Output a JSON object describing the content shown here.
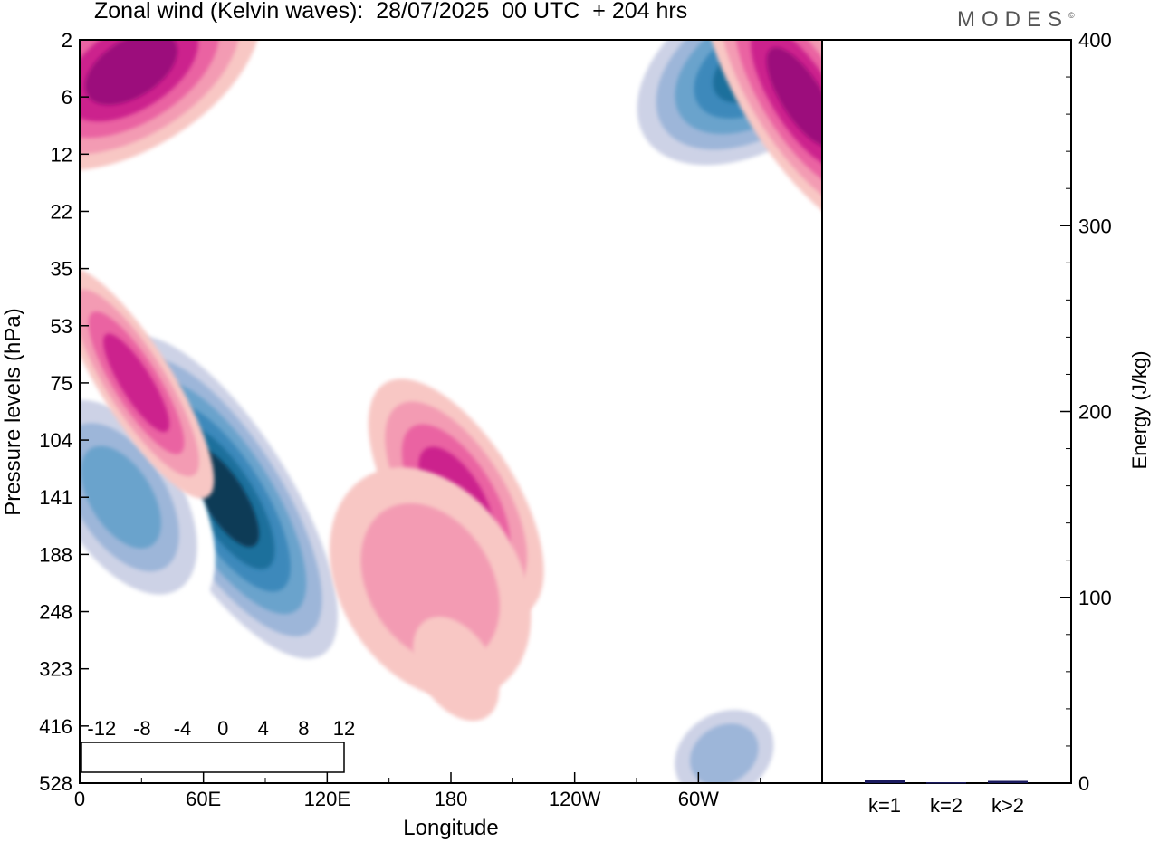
{
  "header": {
    "title": "Zonal wind (Kelvin waves):  28/07/2025  00 UTC  + 204 hrs",
    "logo_text": "MODES",
    "logo_mark": "©"
  },
  "chart_data": [
    {
      "type": "heatmap",
      "title": "Zonal wind (Kelvin waves):  28/07/2025  00 UTC  + 204 hrs",
      "xlabel": "Longitude",
      "ylabel": "Pressure levels (hPa)",
      "x_tick_labels": [
        "0",
        "60E",
        "120E",
        "180",
        "120W",
        "60W"
      ],
      "x_tick_degrees": [
        0,
        60,
        120,
        180,
        240,
        300
      ],
      "xlim_degrees_east": [
        0,
        360
      ],
      "y_tick_labels": [
        "2",
        "6",
        "12",
        "22",
        "35",
        "53",
        "75",
        "104",
        "141",
        "188",
        "248",
        "323",
        "416",
        "528"
      ],
      "y_scale": "pressure levels, 528 hPa at bottom to 2 hPa at top",
      "colorbar": {
        "tick_labels": [
          "-12",
          "-8",
          "-4",
          "0",
          "4",
          "8",
          "12"
        ],
        "levels": [
          -14,
          -12,
          -10,
          -8,
          -6,
          -4,
          -2,
          2,
          4,
          6,
          8,
          10,
          12,
          14
        ],
        "colors": [
          "#0b3a57",
          "#1f6f9c",
          "#3d89bb",
          "#6aa3cc",
          "#9db6d9",
          "#cdd2e6",
          "#ffffff",
          "#f8c7c4",
          "#f39bb3",
          "#ea64a2",
          "#cc238d",
          "#9c0f7b",
          "#5e0b6e"
        ],
        "placement": "bottom-left, inside plot"
      },
      "features": [
        {
          "sign": "negative",
          "level": -14,
          "longitude": [
            60,
            80
          ],
          "pressure_hPa": [
            104,
            188
          ]
        },
        {
          "sign": "negative",
          "level": -12,
          "longitude": [
            305,
            350
          ],
          "pressure_hPa": [
            2,
            6
          ]
        },
        {
          "sign": "negative",
          "level": -8,
          "longitude": [
            5,
            35
          ],
          "pressure_hPa": [
            104,
            188
          ]
        },
        {
          "sign": "negative",
          "level": -6,
          "longitude": [
            295,
            330
          ],
          "pressure_hPa": [
            416,
            528
          ]
        },
        {
          "sign": "positive",
          "level": 10,
          "longitude": [
            0,
            50
          ],
          "pressure_hPa": [
            2,
            6
          ]
        },
        {
          "sign": "positive",
          "level": 10,
          "longitude": [
            340,
            360
          ],
          "pressure_hPa": [
            2,
            12
          ]
        },
        {
          "sign": "positive",
          "level": 8,
          "longitude": [
            20,
            35
          ],
          "pressure_hPa": [
            53,
            104
          ]
        },
        {
          "sign": "positive",
          "level": 8,
          "longitude": [
            170,
            195
          ],
          "pressure_hPa": [
            104,
            188
          ]
        },
        {
          "sign": "positive",
          "level": 4,
          "longitude": [
            140,
            200
          ],
          "pressure_hPa": [
            141,
            323
          ]
        },
        {
          "sign": "positive",
          "level": 2,
          "longitude": [
            165,
            200
          ],
          "pressure_hPa": [
            248,
            416
          ]
        }
      ]
    },
    {
      "type": "bar",
      "ylabel": "Energy (J/kg)",
      "categories": [
        "k=1",
        "k=2",
        "k>2"
      ],
      "values": [
        1.5,
        0.5,
        1.2
      ],
      "ylim": [
        0,
        400
      ],
      "y_tick_labels": [
        "0",
        "100",
        "200",
        "300",
        "400"
      ],
      "bar_color": "#1a1a5e"
    }
  ]
}
